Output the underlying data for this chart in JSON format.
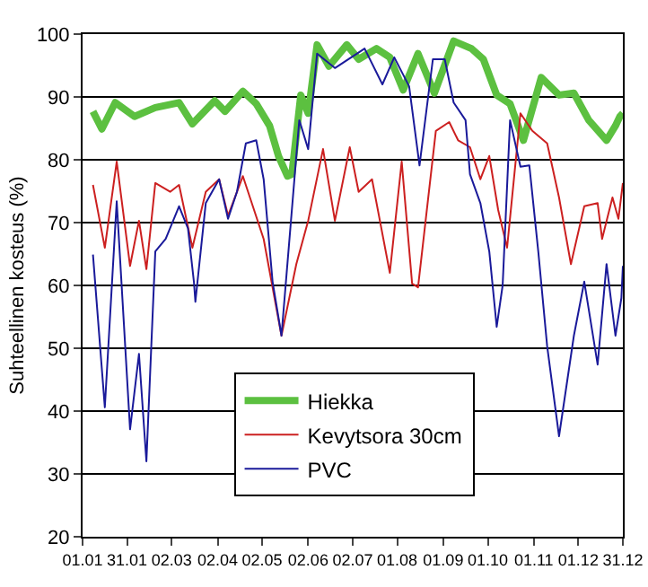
{
  "chart_data": {
    "type": "line",
    "ylabel": "Suhteellinen kosteus (%)",
    "xlim": [
      "--01-01",
      "--12-31"
    ],
    "xticks": [
      {
        "value": "--01-01",
        "label": "01.01"
      },
      {
        "value": "--01-31",
        "label": "31.01"
      },
      {
        "value": "--03-02",
        "label": "02.03"
      },
      {
        "value": "--04-02",
        "label": "02.04"
      },
      {
        "value": "--05-02",
        "label": "02.05"
      },
      {
        "value": "--06-02",
        "label": "02.06"
      },
      {
        "value": "--07-02",
        "label": "02.07"
      },
      {
        "value": "--08-01",
        "label": "01.08"
      },
      {
        "value": "--09-01",
        "label": "01.09"
      },
      {
        "value": "--10-01",
        "label": "01.10"
      },
      {
        "value": "--11-01",
        "label": "01.11"
      },
      {
        "value": "--12-01",
        "label": "01.12"
      },
      {
        "value": "--12-31",
        "label": "31.12"
      }
    ],
    "ylim": [
      20,
      100
    ],
    "yticks": [
      20,
      30,
      40,
      50,
      60,
      70,
      80,
      90,
      100
    ],
    "grid": "y",
    "legend": "bottom",
    "marker": "none",
    "line_style": "solid",
    "series": [
      {
        "name": "Hiekka",
        "color": "#5cc040",
        "x": [
          "--01-08",
          "--01-14",
          "--01-23",
          "--02-05",
          "--02-19",
          "--03-07",
          "--03-16",
          "--03-31",
          "--04-07",
          "--04-19",
          "--04-28",
          "--05-07",
          "--05-13",
          "--05-19",
          "--05-22",
          "--05-28",
          "--06-02",
          "--06-08",
          "--06-16",
          "--06-28",
          "--07-06",
          "--07-18",
          "--07-27",
          "--08-05",
          "--08-15",
          "--08-26",
          "--09-08",
          "--09-20",
          "--09-28",
          "--10-07",
          "--10-16",
          "--10-25",
          "--11-06",
          "--11-18",
          "--11-28",
          "--12-08",
          "--12-20",
          "--12-26",
          "--12-29",
          "--12-31"
        ],
        "values": [
          87.7,
          84.9,
          89.1,
          86.9,
          88.3,
          89.1,
          85.7,
          89.4,
          87.7,
          90.9,
          88.9,
          85.4,
          80.6,
          77.4,
          77.7,
          90.3,
          87.4,
          98.3,
          94.9,
          98.3,
          96.0,
          97.7,
          96.3,
          91.1,
          96.9,
          90.6,
          98.9,
          97.7,
          96.0,
          90.3,
          88.9,
          83.1,
          93.1,
          90.3,
          90.6,
          86.3,
          83.1,
          85.4,
          86.9,
          87.4
        ]
      },
      {
        "name": "Kevytsora 30cm",
        "color": "#cc2020",
        "x": [
          "--01-08",
          "--01-16",
          "--01-24",
          "--02-02",
          "--02-08",
          "--02-13",
          "--02-19",
          "--03-01",
          "--03-07",
          "--03-16",
          "--03-25",
          "--04-03",
          "--04-09",
          "--04-19",
          "--04-25",
          "--05-03",
          "--05-15",
          "--05-25",
          "--06-02",
          "--06-12",
          "--06-20",
          "--06-30",
          "--07-06",
          "--07-15",
          "--07-27",
          "--08-04",
          "--08-11",
          "--08-15",
          "--08-27",
          "--09-05",
          "--09-11",
          "--09-19",
          "--09-26",
          "--10-02",
          "--10-08",
          "--10-14",
          "--10-23",
          "--10-31",
          "--11-10",
          "--11-18",
          "--11-26",
          "--12-05",
          "--12-14",
          "--12-17",
          "--12-24",
          "--12-28",
          "--12-31"
        ],
        "values": [
          76.0,
          66.0,
          79.7,
          63.1,
          70.3,
          62.6,
          76.3,
          74.9,
          76.0,
          66.0,
          74.9,
          76.9,
          71.1,
          77.4,
          73.1,
          67.4,
          52.0,
          63.4,
          70.3,
          81.7,
          70.3,
          82.0,
          74.9,
          76.9,
          62.0,
          79.7,
          60.3,
          59.7,
          84.6,
          86.0,
          83.1,
          82.0,
          76.9,
          80.6,
          72.0,
          66.0,
          87.4,
          84.6,
          82.6,
          74.0,
          63.4,
          72.6,
          73.1,
          67.4,
          74.0,
          70.6,
          76.3
        ]
      },
      {
        "name": "PVC",
        "color": "#1a1a9a",
        "x": [
          "--01-08",
          "--01-16",
          "--01-24",
          "--02-02",
          "--02-08",
          "--02-13",
          "--02-19",
          "--02-26",
          "--03-07",
          "--03-13",
          "--03-17",
          "--03-18",
          "--03-25",
          "--04-03",
          "--04-09",
          "--04-15",
          "--04-21",
          "--04-28",
          "--05-03",
          "--05-09",
          "--05-15",
          "--05-27",
          "--06-02",
          "--06-08",
          "--06-20",
          "--07-10",
          "--07-22",
          "--07-30",
          "--08-09",
          "--08-16",
          "--08-25",
          "--09-02",
          "--09-08",
          "--09-16",
          "--09-19",
          "--09-26",
          "--10-02",
          "--10-07",
          "--10-11",
          "--10-16",
          "--10-23",
          "--10-29",
          "--11-04",
          "--11-10",
          "--11-18",
          "--11-28",
          "--12-05",
          "--12-14",
          "--12-20",
          "--12-26",
          "--12-30",
          "--12-31"
        ],
        "values": [
          64.9,
          40.6,
          73.4,
          37.1,
          49.1,
          32.0,
          65.4,
          67.4,
          72.6,
          69.1,
          60.6,
          57.4,
          73.1,
          76.9,
          70.6,
          74.9,
          82.6,
          83.1,
          76.9,
          60.6,
          52.0,
          86.3,
          81.7,
          96.9,
          94.6,
          97.7,
          92.0,
          96.3,
          91.7,
          79.1,
          96.0,
          96.0,
          89.1,
          86.3,
          77.7,
          73.1,
          65.4,
          53.4,
          60.0,
          86.3,
          78.9,
          79.1,
          65.4,
          50.3,
          36.0,
          52.0,
          60.6,
          47.4,
          63.4,
          52.0,
          58.0,
          63.1
        ]
      }
    ]
  }
}
